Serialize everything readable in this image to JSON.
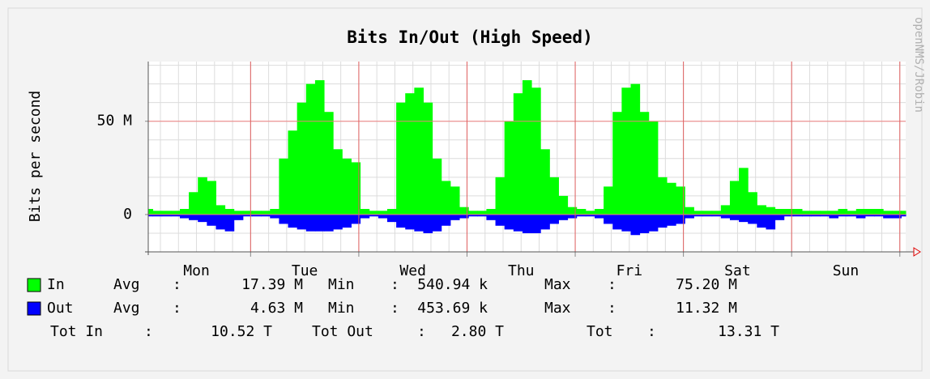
{
  "chart_data": {
    "type": "area",
    "title": "Bits In/Out (High Speed)",
    "y_label": "Bits per second",
    "watermark": "openNMS/JRobin",
    "x": [
      0,
      2,
      4,
      6,
      8,
      10,
      12,
      14,
      16,
      18,
      20,
      22,
      24,
      26,
      28,
      30,
      32,
      34,
      36,
      38,
      40,
      42,
      44,
      46,
      48,
      50,
      52,
      54,
      56,
      58,
      60,
      62,
      64,
      66,
      68,
      70,
      72,
      74,
      76,
      78,
      80,
      82,
      84,
      86,
      88,
      90,
      92,
      94,
      96,
      98,
      100,
      102,
      104,
      106,
      108,
      110,
      112,
      114,
      116,
      118,
      120,
      122,
      124,
      126,
      128,
      130,
      132,
      134,
      136,
      138,
      140,
      142,
      144,
      146,
      148,
      150,
      152,
      154,
      156,
      158,
      160,
      162,
      164,
      166,
      168
    ],
    "series": [
      {
        "name": "In",
        "color": "#00ff00",
        "values": [
          3,
          2,
          2,
          2,
          3,
          12,
          20,
          18,
          5,
          3,
          2,
          2,
          2,
          2,
          3,
          30,
          45,
          60,
          70,
          72,
          55,
          35,
          30,
          28,
          3,
          2,
          2,
          3,
          60,
          65,
          68,
          60,
          30,
          18,
          15,
          4,
          2,
          2,
          3,
          20,
          50,
          65,
          72,
          68,
          35,
          20,
          10,
          4,
          3,
          2,
          3,
          15,
          55,
          68,
          70,
          55,
          50,
          20,
          17,
          15,
          4,
          2,
          2,
          2,
          5,
          18,
          25,
          12,
          5,
          4,
          3,
          3,
          3,
          2,
          2,
          2,
          2,
          3,
          2,
          3,
          3,
          3,
          2,
          2,
          2
        ]
      },
      {
        "name": "Out",
        "color": "#0000ff",
        "values": [
          -1,
          -1,
          -1,
          -1,
          -2,
          -3,
          -4,
          -6,
          -8,
          -9,
          -3,
          -1,
          -1,
          -1,
          -2,
          -5,
          -7,
          -8,
          -9,
          -9,
          -9,
          -8,
          -7,
          -5,
          -2,
          -1,
          -2,
          -4,
          -7,
          -8,
          -9,
          -10,
          -9,
          -6,
          -3,
          -2,
          -1,
          -1,
          -3,
          -6,
          -8,
          -9,
          -10,
          -10,
          -8,
          -5,
          -3,
          -2,
          -1,
          -1,
          -2,
          -5,
          -8,
          -9,
          -11,
          -10,
          -9,
          -7,
          -6,
          -5,
          -2,
          -1,
          -1,
          -1,
          -2,
          -3,
          -4,
          -5,
          -7,
          -8,
          -3,
          -1,
          -1,
          -1,
          -1,
          -1,
          -2,
          -1,
          -1,
          -2,
          -1,
          -1,
          -2,
          -2,
          -1
        ]
      }
    ],
    "xlim": [
      0,
      168
    ],
    "xticks": [
      {
        "value": 10.7,
        "label": "Mon"
      },
      {
        "value": 34.7,
        "label": "Tue"
      },
      {
        "value": 58.7,
        "label": "Wed"
      },
      {
        "value": 82.7,
        "label": "Thu"
      },
      {
        "value": 106.7,
        "label": "Fri"
      },
      {
        "value": 130.7,
        "label": "Sat"
      },
      {
        "value": 154.7,
        "label": "Sun"
      }
    ],
    "ylim": [
      -20,
      82
    ],
    "yticks": [
      0,
      {
        "value": 50,
        "label": "50 M"
      }
    ],
    "minor_grid": {
      "x": 4,
      "y": 10
    },
    "grid": true,
    "stats": [
      [
        "Avg",
        ":",
        "17.39 M",
        "Min",
        ":",
        "540.94 k",
        "Max",
        ":",
        "75.20 M"
      ],
      [
        "Avg",
        ":",
        "4.63 M",
        "Min",
        ":",
        "453.69 k",
        "Max",
        ":",
        "11.32 M"
      ]
    ],
    "totals": [
      "Tot In",
      ":",
      "10.52 T",
      "Tot Out",
      ":",
      "2.80 T",
      "Tot",
      ":",
      "13.31 T"
    ]
  }
}
